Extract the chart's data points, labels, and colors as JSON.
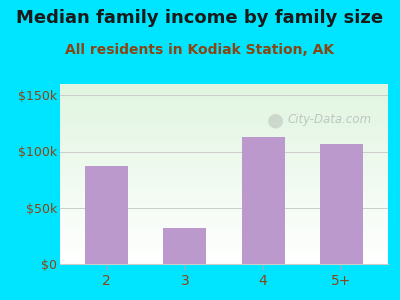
{
  "title": "Median family income by family size",
  "subtitle": "All residents in Kodiak Station, AK",
  "categories": [
    "2",
    "3",
    "4",
    "5+"
  ],
  "values": [
    87000,
    32000,
    113000,
    107000
  ],
  "bar_color": "#bb99cc",
  "outer_bg": "#00e5ff",
  "yticks": [
    0,
    50000,
    100000,
    150000
  ],
  "ytick_labels": [
    "$0",
    "$50k",
    "$100k",
    "$150k"
  ],
  "ylim": [
    0,
    160000
  ],
  "title_color": "#1a1a1a",
  "subtitle_color": "#8b4513",
  "tick_color": "#8b4513",
  "watermark": "City-Data.com",
  "title_fontsize": 13,
  "subtitle_fontsize": 10
}
